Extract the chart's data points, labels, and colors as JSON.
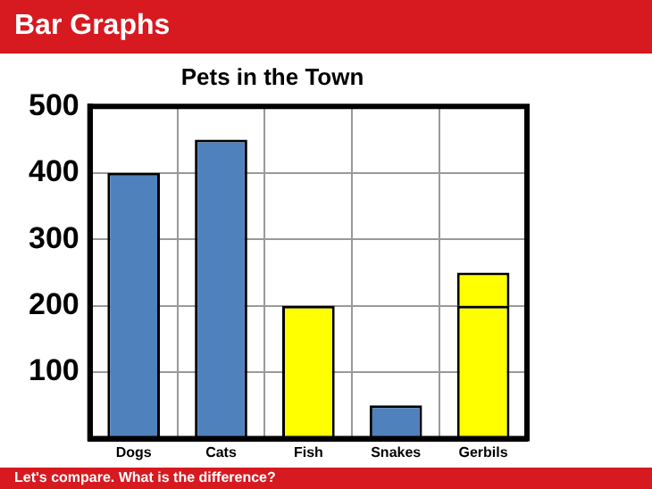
{
  "chart_data": {
    "type": "bar",
    "title": "Bar Graphs",
    "subtitle": "Pets in the Town",
    "annotations": [
      "Let's compare. What is the difference?"
    ],
    "categories": [
      "Dogs",
      "Cats",
      "Fish",
      "Snakes",
      "Gerbils"
    ],
    "stacked": true,
    "series": [
      {
        "colors": [
          "#4f81bd",
          "#4f81bd",
          "#ffff00",
          "#4f81bd",
          "#ffff00"
        ],
        "values": [
          400,
          450,
          200,
          50,
          200
        ]
      },
      {
        "color": "#ffff00",
        "values": [
          null,
          null,
          null,
          null,
          50
        ]
      }
    ],
    "ylim": [
      0,
      500
    ],
    "yticks": [
      {
        "value": 0,
        "label": null
      },
      100,
      200,
      300,
      400,
      500
    ],
    "grid": true,
    "legend": false
  }
}
